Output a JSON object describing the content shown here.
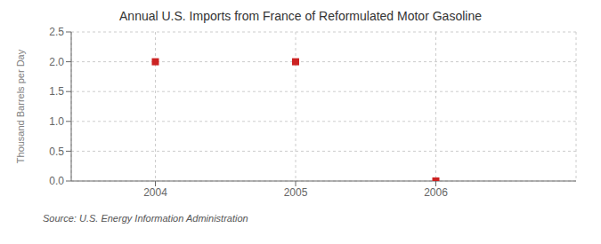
{
  "chart_data": {
    "type": "scatter",
    "title": "Annual U.S. Imports from France of Reformulated Motor Gasoline",
    "ylabel": "Thousand Barrels per Day",
    "annotations": [
      "Source: U.S. Energy Information Administration"
    ],
    "x": [
      2004,
      2005,
      2006
    ],
    "values": [
      2.0,
      2.0,
      0.0
    ],
    "color": "#cc2222",
    "marker": "square",
    "xlim": [
      2003.4,
      2007.0
    ],
    "ylim": [
      0.0,
      2.5
    ],
    "xticks": [
      2004,
      2005,
      2006
    ],
    "yticks": [
      {
        "value": 0,
        "label": "0.0"
      },
      0.5,
      {
        "value": 1,
        "label": "1.0"
      },
      1.5,
      {
        "value": 2,
        "label": "2.0"
      },
      2.5
    ],
    "grid": true
  }
}
